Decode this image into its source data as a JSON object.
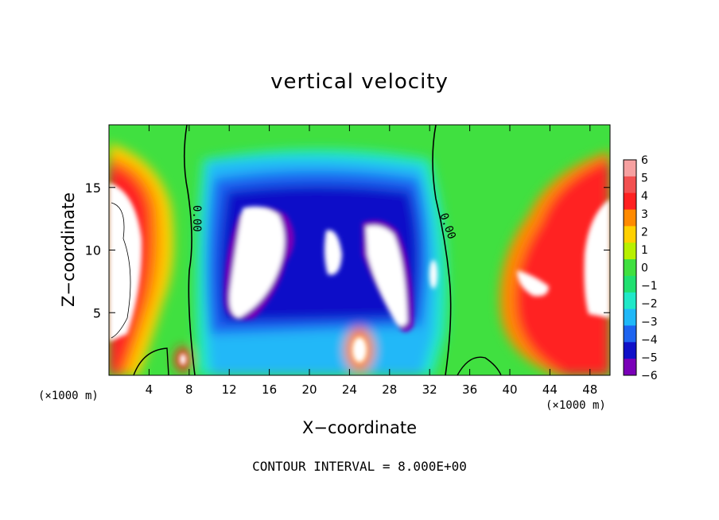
{
  "chart_data": {
    "type": "heatmap",
    "title": "vertical velocity",
    "xlabel": "X−coordinate",
    "ylabel": "Z−coordinate",
    "x_scale_label": "(×1000 m)",
    "y_scale_label": "(×1000 m)",
    "xlim": [
      0,
      50
    ],
    "ylim": [
      0,
      20
    ],
    "x_ticks": [
      4,
      8,
      12,
      16,
      20,
      24,
      28,
      32,
      36,
      40,
      44,
      48
    ],
    "y_ticks": [
      5,
      10,
      15
    ],
    "colorbar": {
      "levels": [
        6,
        5,
        4,
        3,
        2,
        1,
        0,
        -1,
        -2,
        -3,
        -4,
        -5,
        -6
      ],
      "labels": [
        "6",
        "5",
        "4",
        "3",
        "2",
        "1",
        "0",
        "−1",
        "−2",
        "−3",
        "−4",
        "−5",
        "−6"
      ],
      "colors": [
        "#f6a0a0",
        "#f25050",
        "#ff2020",
        "#ff8a00",
        "#ffd000",
        "#b8f000",
        "#40e040",
        "#20e070",
        "#20e8c8",
        "#20b8f8",
        "#1e64f0",
        "#1010c8",
        "#7a00b8"
      ]
    },
    "contour_labels": [
      "0.00",
      "0.00"
    ],
    "contour_interval": "CONTOUR INTERVAL = 8.000E+00"
  }
}
